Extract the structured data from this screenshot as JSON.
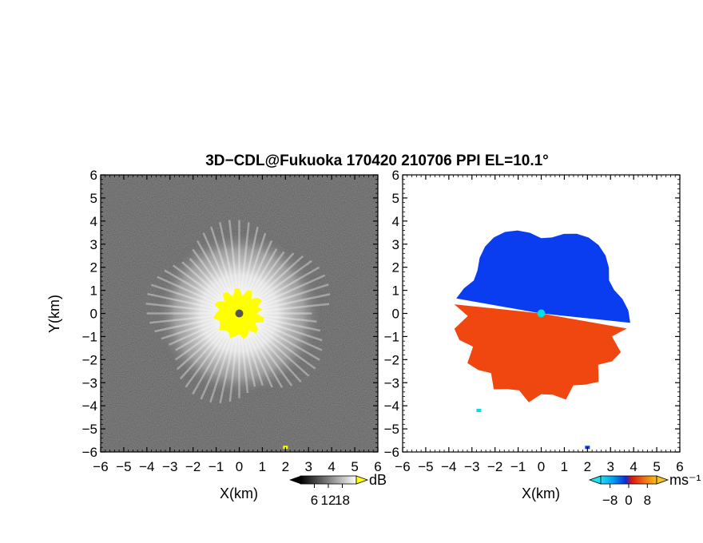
{
  "chart_data": [
    {
      "type": "heatmap",
      "title": "3D−CDL@Fukuoka 170420 210706 PPI EL=10.1°",
      "xlabel": "X(km)",
      "ylabel": "Y(km)",
      "xlim": [
        -6,
        6
      ],
      "ylim": [
        -6,
        6
      ],
      "x_ticks": [
        "−6",
        "−5",
        "−4",
        "−3",
        "−2",
        "−1",
        "0",
        "1",
        "2",
        "3",
        "4",
        "5",
        "6"
      ],
      "y_ticks": [
        "6",
        "5",
        "4",
        "3",
        "2",
        "1",
        "0",
        "−1",
        "−2",
        "−3",
        "−4",
        "−5",
        "−6"
      ],
      "colorbar": {
        "unit": "dB",
        "ticks": [
          "6",
          "12",
          "18"
        ],
        "range": [
          0,
          24
        ]
      },
      "colors": {
        "background": "#1e1e1e",
        "echo": "#ffffff",
        "saturated": "#ffff00",
        "center": "#555555"
      },
      "echo_radius_km": 3.7,
      "saturated_radius_km": 1.0,
      "small_targets": [
        {
          "x": 2.0,
          "y": -5.8
        }
      ]
    },
    {
      "type": "heatmap",
      "xlabel": "X(km)",
      "xlim": [
        -6,
        6
      ],
      "ylim": [
        -6,
        6
      ],
      "x_ticks": [
        "−6",
        "−5",
        "−4",
        "−3",
        "−2",
        "−1",
        "0",
        "1",
        "2",
        "3",
        "4",
        "5",
        "6"
      ],
      "y_ticks": [
        "6",
        "5",
        "4",
        "3",
        "2",
        "1",
        "0",
        "−1",
        "−2",
        "−3",
        "−4",
        "−5",
        "−6"
      ],
      "colorbar": {
        "unit": "ms⁻¹",
        "ticks": [
          "−8",
          "0",
          "8"
        ],
        "range": [
          -12,
          12
        ]
      },
      "colors": {
        "approaching": "#0a3cf0",
        "receding": "#f0460f",
        "background": "#ffffff",
        "center": "#00e0e0"
      },
      "echo_radius_km": 3.7,
      "small_targets": [
        {
          "x": -2.7,
          "y": -4.2
        },
        {
          "x": 2.0,
          "y": -5.8
        }
      ]
    }
  ]
}
